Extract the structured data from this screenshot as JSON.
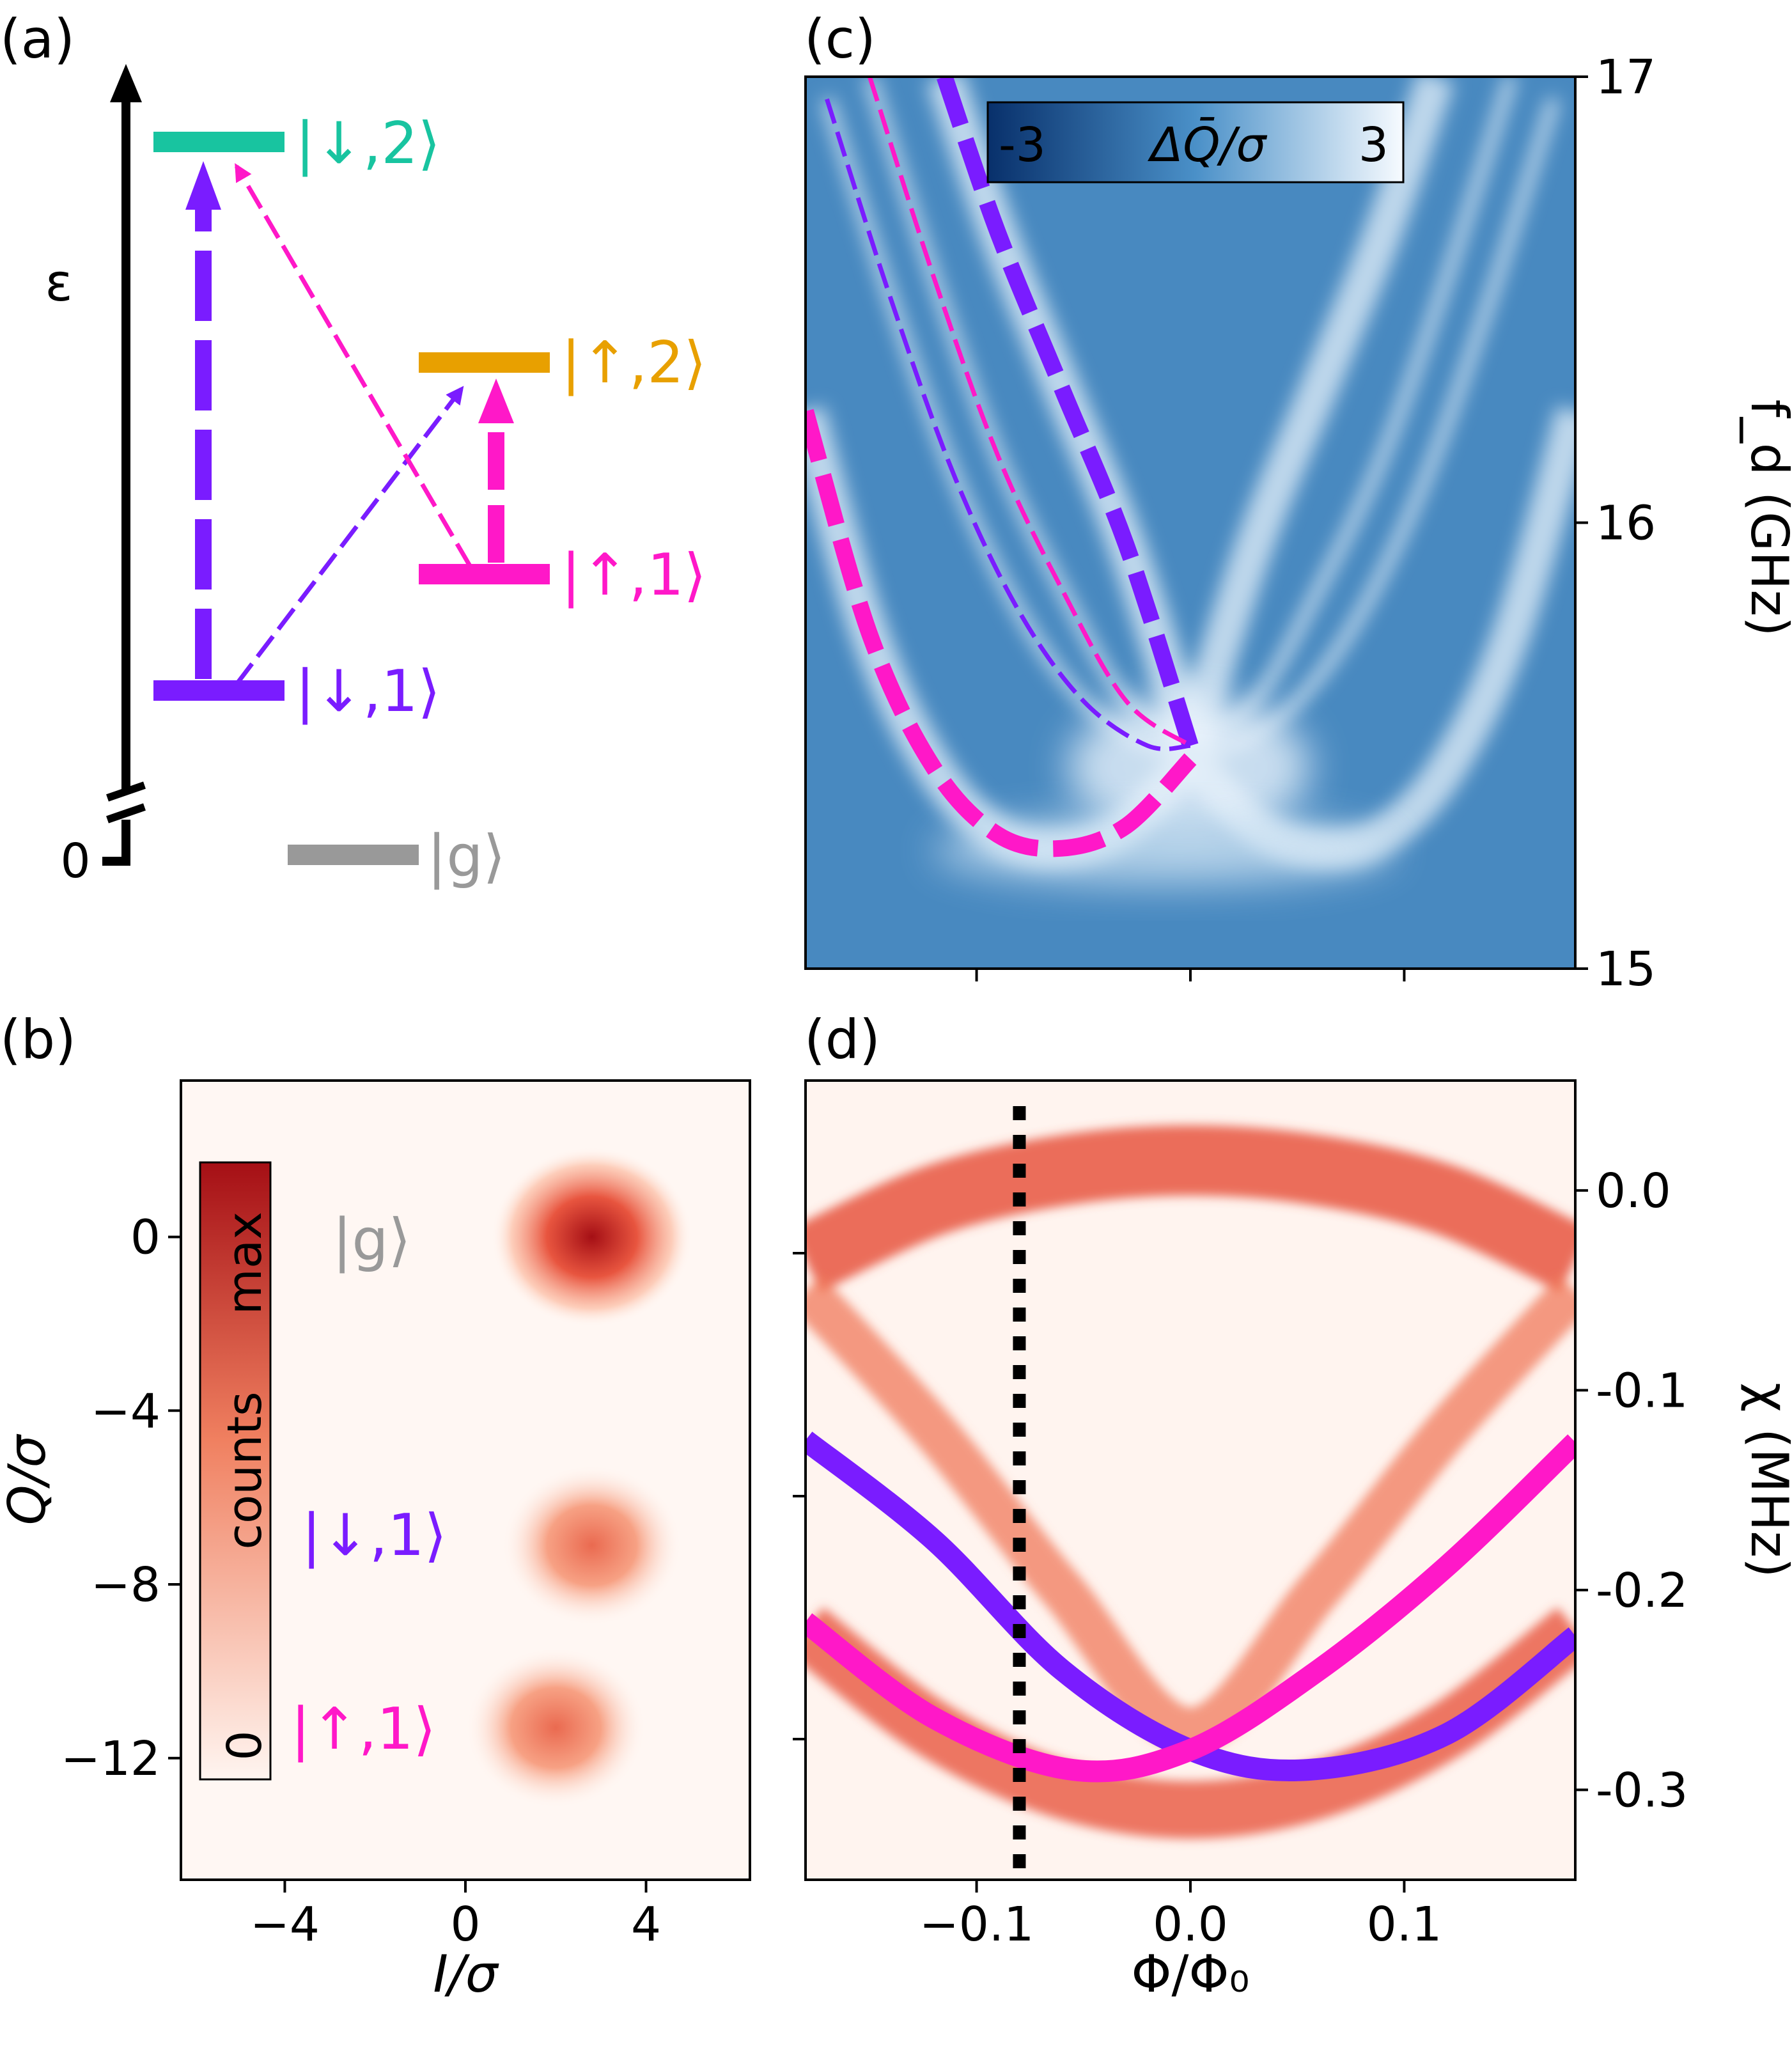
{
  "colors": {
    "down1": "#7a1cff",
    "up1": "#ff18c8",
    "down2": "#18c4a0",
    "up2": "#e8a000",
    "ground": "#999999",
    "heat_low": "#fff5f0",
    "heat_mid": "#f08060",
    "heat_high": "#a50f15",
    "blue_low": "#08306b",
    "blue_mid": "#4a90c8",
    "blue_high": "#f7fbff"
  },
  "panel_a": {
    "label": "(a)",
    "energy_symbol": "ε",
    "zero_tick": "0",
    "states": [
      {
        "name": "|↓,2⟩",
        "color_key": "down2"
      },
      {
        "name": "|↑,2⟩",
        "color_key": "up2"
      },
      {
        "name": "|↑,1⟩",
        "color_key": "up1"
      },
      {
        "name": "|↓,1⟩",
        "color_key": "down1"
      },
      {
        "name": "|g⟩",
        "color_key": "ground"
      }
    ]
  },
  "chart_data": [
    {
      "panel": "(b)",
      "type": "heatmap",
      "xlabel": "I/σ",
      "ylabel": "Q/σ",
      "xlim": [
        -6.3,
        6.3
      ],
      "ylim": [
        -14.8,
        3.6
      ],
      "xticks": [
        -4,
        0,
        4
      ],
      "yticks": [
        0,
        -4,
        -8,
        -12
      ],
      "ytick_labels": [
        "0",
        "−4",
        "−8",
        "−12"
      ],
      "xtick_labels": [
        "−4",
        "0",
        "4"
      ],
      "colorbar": {
        "label": "counts",
        "min_label": "0",
        "max_label": "max"
      },
      "blobs": [
        {
          "state": "|g⟩",
          "I": 2.8,
          "Q": 0.0,
          "relative_peak": 1.0,
          "color_key": "ground"
        },
        {
          "state": "|↓,1⟩",
          "I": 2.8,
          "Q": -7.1,
          "relative_peak": 0.62,
          "color_key": "down1"
        },
        {
          "state": "|↑,1⟩",
          "I": 2.0,
          "Q": -11.3,
          "relative_peak": 0.62,
          "color_key": "up1"
        }
      ]
    },
    {
      "panel": "(c)",
      "type": "heatmap",
      "ylabel": "f_d (GHz)",
      "ylim": [
        15,
        17
      ],
      "yticks": [
        15,
        16,
        17
      ],
      "ytick_labels": [
        "15",
        "16",
        "17"
      ],
      "xlim": [
        -0.18,
        0.18
      ],
      "colorbar": {
        "label": "ΔQ̄/σ",
        "min_label": "-3",
        "max_label": "3"
      },
      "features": [
        {
          "name": "|↑,1⟩→|↑,2⟩",
          "style": "thick-dashed",
          "color_key": "up1",
          "x": [
            -0.18,
            -0.15,
            -0.12,
            -0.09,
            -0.06,
            -0.03,
            0.0
          ],
          "y": [
            16.25,
            15.75,
            15.45,
            15.3,
            15.27,
            15.32,
            15.47
          ]
        },
        {
          "name": "|↓,1⟩→|↓,2⟩",
          "style": "thick-dashed",
          "color_key": "down1",
          "x": [
            -0.115,
            -0.09,
            -0.06,
            -0.03,
            0.0
          ],
          "y": [
            17.0,
            16.65,
            16.3,
            15.95,
            15.5
          ]
        },
        {
          "name": "|↓,1⟩→|↑,2⟩",
          "style": "thin-dashed",
          "color_key": "down1",
          "x": [
            -0.17,
            -0.14,
            -0.11,
            -0.08,
            -0.05,
            -0.02,
            0.0
          ],
          "y": [
            16.95,
            16.5,
            16.1,
            15.8,
            15.6,
            15.5,
            15.5
          ]
        },
        {
          "name": "|↑,1⟩→|↓,2⟩",
          "style": "thin-dashed",
          "color_key": "up1",
          "x": [
            -0.15,
            -0.12,
            -0.09,
            -0.06,
            -0.03,
            0.0
          ],
          "y": [
            17.0,
            16.55,
            16.15,
            15.85,
            15.6,
            15.5
          ]
        }
      ]
    },
    {
      "panel": "(d)",
      "type": "heatmap",
      "xlabel": "Φ/Φ₀",
      "ylabel": "χ (MHz)",
      "xlim": [
        -0.18,
        0.18
      ],
      "ylim": [
        -0.345,
        0.055
      ],
      "xticks": [
        -0.1,
        0.0,
        0.1
      ],
      "xtick_labels": [
        "−0.1",
        "0.0",
        "0.1"
      ],
      "yticks": [
        0.0,
        -0.1,
        -0.2,
        -0.3
      ],
      "ytick_labels": [
        "0.0",
        "-0.1",
        "-0.2",
        "-0.3"
      ],
      "vline_x": -0.08,
      "series": [
        {
          "name": "|↓,1⟩",
          "color_key": "down1",
          "x": [
            -0.18,
            -0.12,
            -0.06,
            0.0,
            0.055,
            0.12,
            0.18
          ],
          "y": [
            -0.125,
            -0.175,
            -0.24,
            -0.28,
            -0.29,
            -0.272,
            -0.223
          ]
        },
        {
          "name": "|↑,1⟩",
          "color_key": "up1",
          "x": [
            -0.18,
            -0.12,
            -0.055,
            0.0,
            0.06,
            0.12,
            0.18
          ],
          "y": [
            -0.216,
            -0.264,
            -0.29,
            -0.28,
            -0.24,
            -0.188,
            -0.126
          ]
        }
      ],
      "bands": [
        {
          "name": "upper arc",
          "x": [
            -0.18,
            -0.12,
            -0.06,
            0.0,
            0.06,
            0.12,
            0.18
          ],
          "y": [
            -0.035,
            -0.005,
            0.01,
            0.015,
            0.01,
            -0.005,
            -0.035
          ]
        },
        {
          "name": "lower arc A",
          "x": [
            -0.18,
            -0.12,
            -0.06,
            0.0,
            0.06,
            0.12,
            0.18
          ],
          "y": [
            -0.05,
            -0.12,
            -0.2,
            -0.27,
            -0.2,
            -0.12,
            -0.05
          ]
        },
        {
          "name": "lower arc B",
          "x": [
            -0.18,
            -0.12,
            -0.06,
            0.0,
            0.06,
            0.12,
            0.18
          ],
          "y": [
            -0.22,
            -0.27,
            -0.3,
            -0.31,
            -0.3,
            -0.27,
            -0.22
          ]
        }
      ]
    }
  ],
  "shared_x_axis": {
    "label": "Φ/Φ₀"
  }
}
